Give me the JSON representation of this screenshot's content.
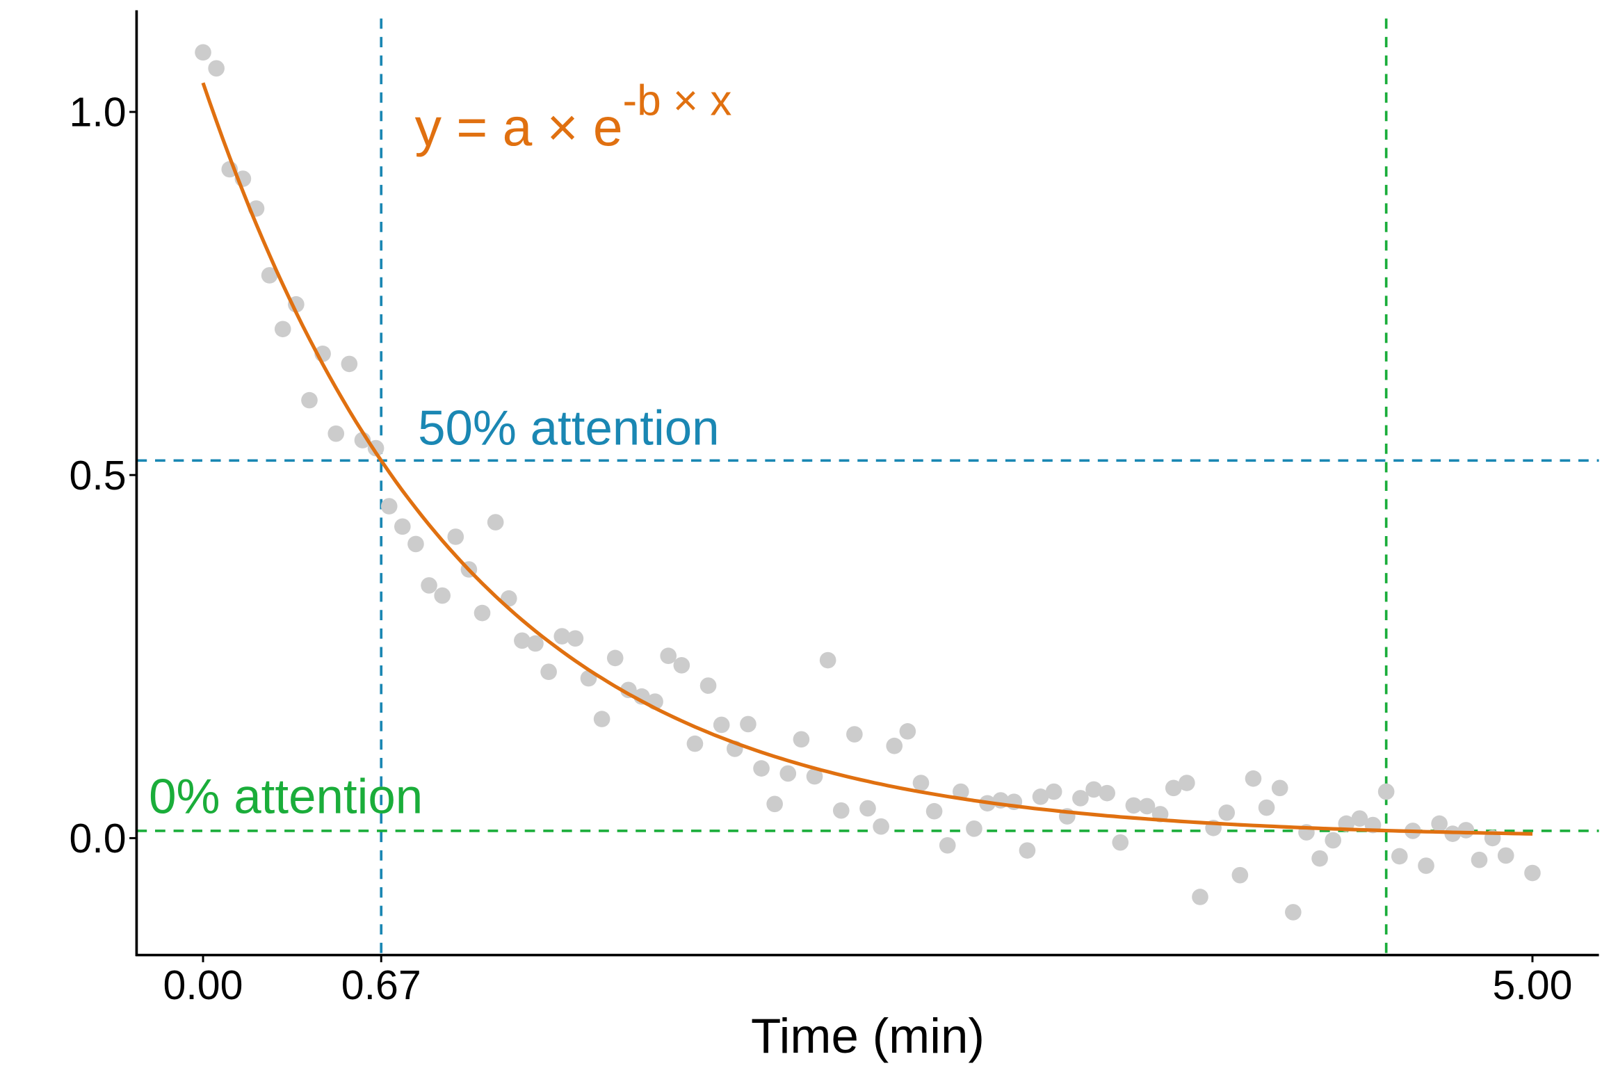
{
  "chart_data": {
    "type": "scatter",
    "title": "",
    "xlabel": "Time (min)",
    "ylabel": "",
    "xlim": [
      -0.25,
      5.25
    ],
    "ylim": [
      -0.161,
      1.14
    ],
    "grid": false,
    "x_ticks": [
      {
        "value": 0,
        "label": "0.00"
      },
      {
        "value": 0.67,
        "label": "0.67"
      },
      {
        "value": 5,
        "label": "5.00"
      }
    ],
    "y_ticks": [
      {
        "value": 0,
        "label": "0.0"
      },
      {
        "value": 0.5,
        "label": "0.5"
      },
      {
        "value": 1,
        "label": "1.0"
      }
    ],
    "points": {
      "color": "#cccccc",
      "x": [
        0,
        0.05,
        0.1,
        0.15,
        0.2,
        0.25,
        0.3,
        0.35,
        0.4,
        0.45,
        0.5,
        0.55,
        0.6,
        0.65,
        0.7,
        0.75,
        0.8,
        0.85,
        0.9,
        0.95,
        1.0,
        1.05,
        1.1,
        1.15,
        1.2,
        1.25,
        1.3,
        1.35,
        1.4,
        1.45,
        1.5,
        1.55,
        1.6,
        1.65,
        1.7,
        1.75,
        1.8,
        1.85,
        1.9,
        1.95,
        2.0,
        2.05,
        2.1,
        2.15,
        2.2,
        2.25,
        2.3,
        2.35,
        2.4,
        2.45,
        2.5,
        2.55,
        2.6,
        2.65,
        2.7,
        2.75,
        2.8,
        2.85,
        2.9,
        2.95,
        3.0,
        3.05,
        3.1,
        3.15,
        3.2,
        3.25,
        3.3,
        3.35,
        3.4,
        3.45,
        3.5,
        3.55,
        3.6,
        3.65,
        3.7,
        3.75,
        3.8,
        3.85,
        3.9,
        3.95,
        4.0,
        4.05,
        4.1,
        4.15,
        4.2,
        4.25,
        4.3,
        4.35,
        4.4,
        4.45,
        4.5,
        4.55,
        4.6,
        4.65,
        4.7,
        4.75,
        4.8,
        4.85,
        4.9,
        5.0
      ],
      "y": [
        1.082,
        1.06,
        0.921,
        0.908,
        0.867,
        0.775,
        0.701,
        0.735,
        0.603,
        0.667,
        0.557,
        0.653,
        0.548,
        0.537,
        0.457,
        0.429,
        0.405,
        0.348,
        0.334,
        0.415,
        0.37,
        0.31,
        0.435,
        0.33,
        0.272,
        0.268,
        0.229,
        0.278,
        0.275,
        0.22,
        0.164,
        0.248,
        0.204,
        0.195,
        0.188,
        0.251,
        0.238,
        0.13,
        0.21,
        0.156,
        0.123,
        0.157,
        0.096,
        0.047,
        0.089,
        0.136,
        0.085,
        0.245,
        0.038,
        0.143,
        0.041,
        0.016,
        0.127,
        0.147,
        0.076,
        0.037,
        -0.01,
        0.064,
        0.013,
        0.048,
        0.052,
        0.05,
        -0.017,
        0.057,
        0.064,
        0.03,
        0.055,
        0.067,
        0.062,
        -0.006,
        0.045,
        0.044,
        0.033,
        0.069,
        0.076,
        -0.081,
        0.014,
        0.035,
        -0.051,
        0.082,
        0.042,
        0.069,
        -0.102,
        0.008,
        -0.028,
        -0.003,
        0.02,
        0.027,
        0.018,
        0.064,
        -0.025,
        0.01,
        -0.038,
        0.02,
        0.006,
        0.011,
        -0.03,
        0.0,
        -0.024,
        -0.048
      ]
    },
    "fit": {
      "type": "exponential",
      "a": 1.04,
      "b": 1.035,
      "x_range": [
        0,
        5
      ],
      "color": "#e07010",
      "label_main": "y = a × e",
      "label_sup": "-b × x"
    },
    "reference_lines": [
      {
        "orientation": "horizontal",
        "value": 0.52,
        "color": "#1a87b3",
        "label": "50% attention"
      },
      {
        "orientation": "vertical",
        "value": 0.67,
        "color": "#1a87b3"
      },
      {
        "orientation": "horizontal",
        "value": 0.01,
        "color": "#1aad3a",
        "label": "0% attention"
      },
      {
        "orientation": "vertical",
        "value": 4.45,
        "color": "#1aad3a"
      }
    ]
  }
}
